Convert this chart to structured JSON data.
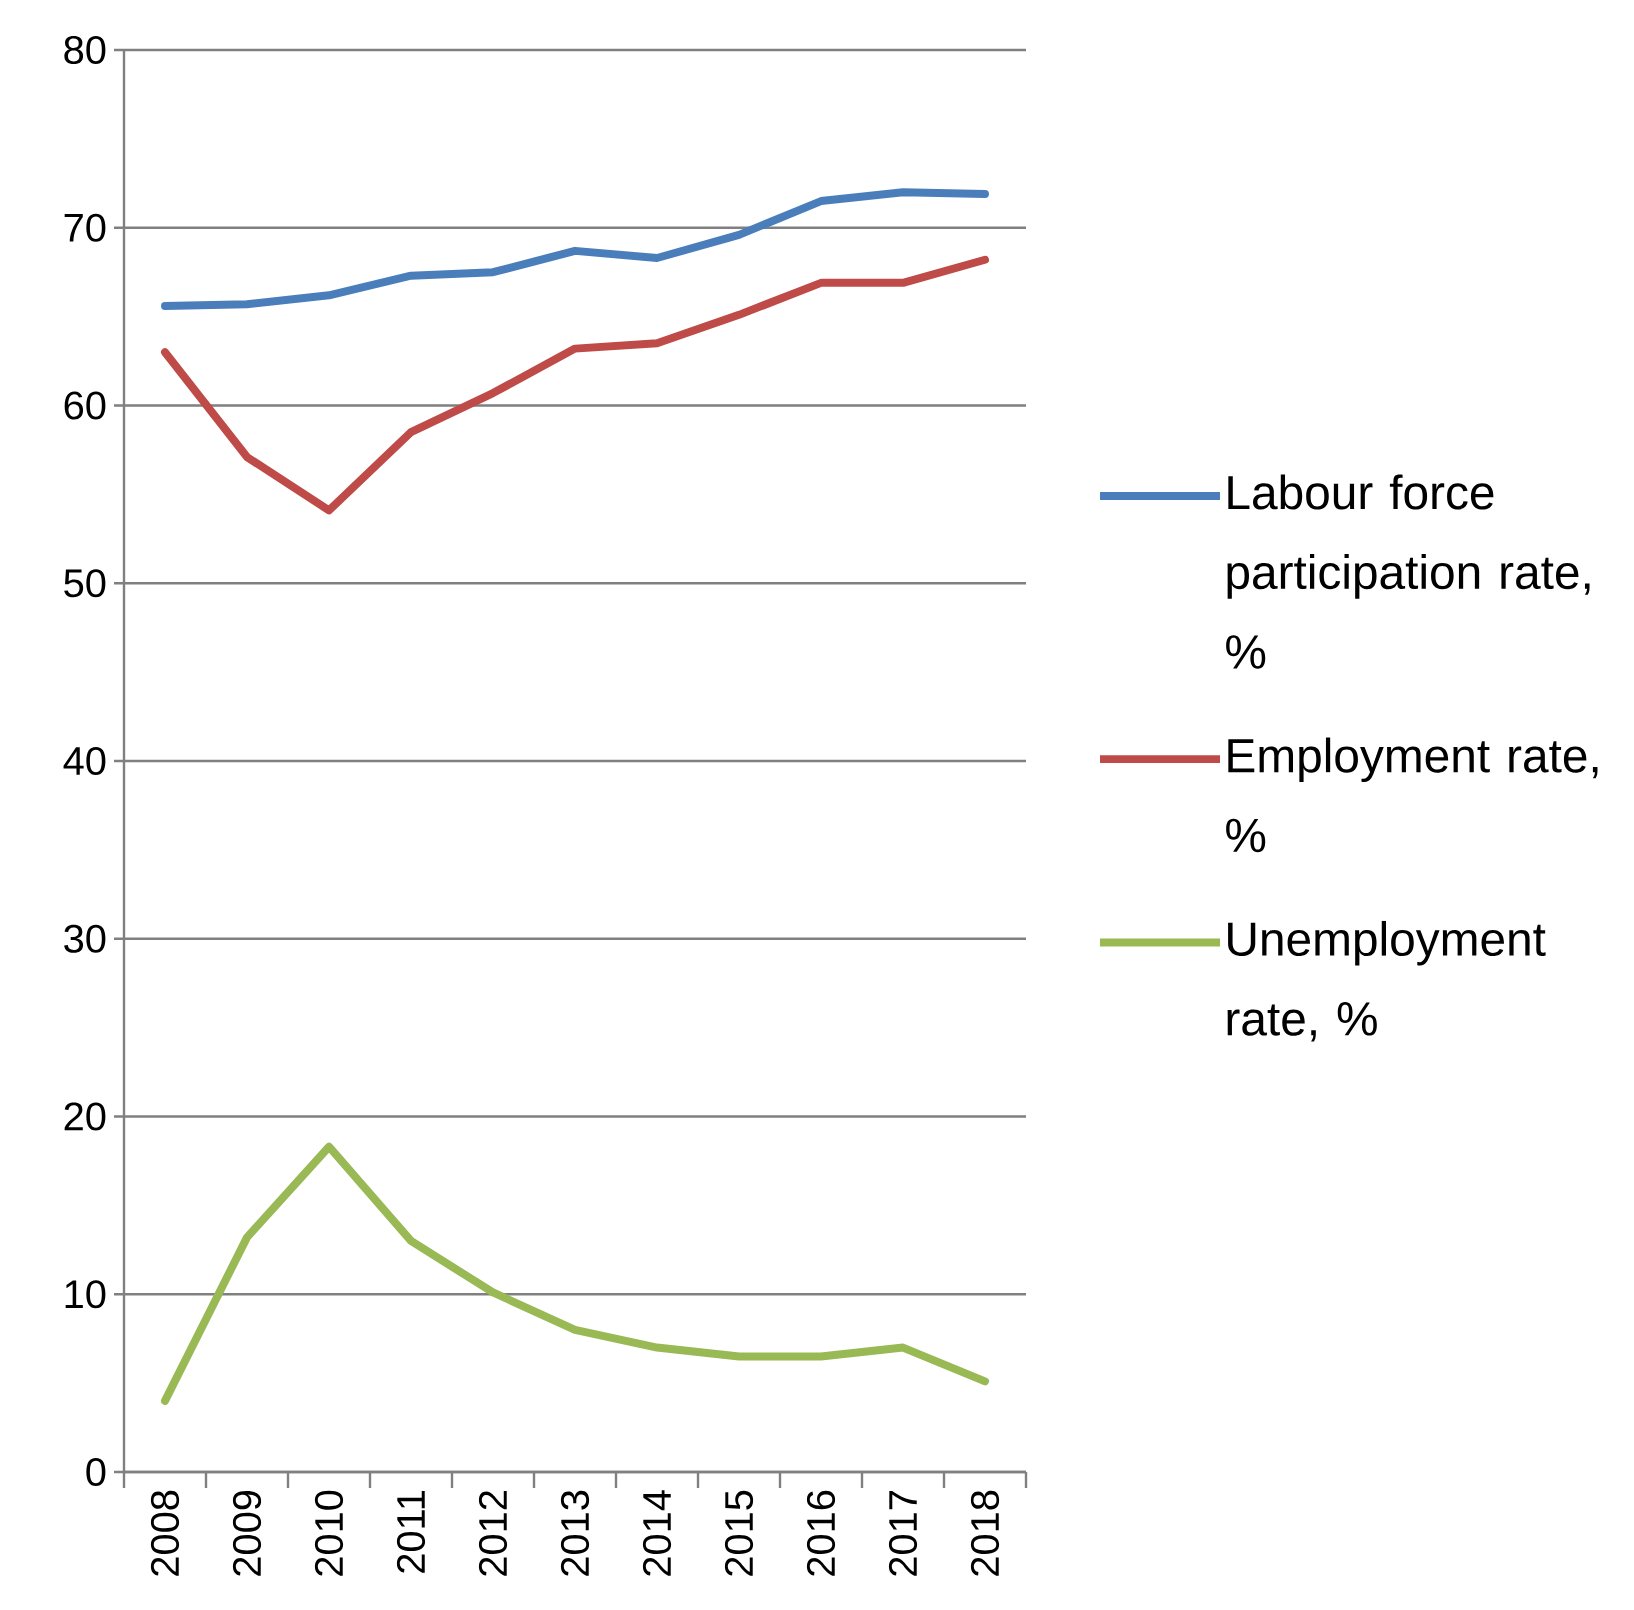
{
  "chart_data": {
    "type": "line",
    "categories": [
      "2008",
      "2009",
      "2010",
      "2011",
      "2012",
      "2013",
      "2014",
      "2015",
      "2016",
      "2017",
      "2018"
    ],
    "series": [
      {
        "name": "Labour force participation rate, %",
        "color": "#4a7ebb",
        "values": [
          65.6,
          65.7,
          66.2,
          67.3,
          67.5,
          68.7,
          68.3,
          69.6,
          71.5,
          72.0,
          71.9
        ]
      },
      {
        "name": "Employment rate, %",
        "color": "#be4b48",
        "values": [
          63.0,
          57.1,
          54.1,
          58.5,
          60.7,
          63.2,
          63.5,
          65.1,
          66.9,
          66.9,
          68.2
        ]
      },
      {
        "name": "Unemployment rate, %",
        "color": "#98b954",
        "values": [
          4.0,
          13.2,
          18.3,
          13.0,
          10.1,
          8.0,
          7.0,
          6.5,
          6.5,
          7.0,
          5.1
        ]
      }
    ],
    "ylim": [
      0,
      80
    ],
    "yticks": [
      0,
      10,
      20,
      30,
      40,
      50,
      60,
      70,
      80
    ],
    "grid": "y",
    "legend": "right",
    "marker": "none",
    "line_style": "solid"
  }
}
